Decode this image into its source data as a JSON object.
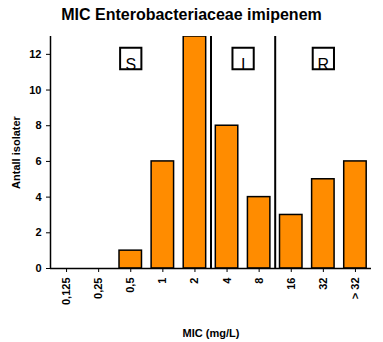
{
  "chart_data": {
    "type": "bar",
    "title": "MIC Enterobacteriaceae imipenem",
    "xlabel": "MIC (mg/L)",
    "ylabel": "Antall isolater",
    "categories": [
      "0,125",
      "0,25",
      "0,5",
      "1",
      "2",
      "4",
      "8",
      "16",
      "32",
      "> 32"
    ],
    "values": [
      0,
      0,
      1,
      6,
      13,
      8,
      4,
      3,
      5,
      6
    ],
    "color": "#ff8c00",
    "ylim": [
      0,
      13
    ],
    "yticks": [
      0,
      2,
      4,
      6,
      8,
      10,
      12
    ],
    "grid": false,
    "annotations": [
      {
        "text": "S",
        "from": "0,125",
        "to": "2"
      },
      {
        "text": "I",
        "from": "4",
        "to": "8"
      },
      {
        "text": "R",
        "from": "16",
        "to": "> 32"
      }
    ]
  }
}
